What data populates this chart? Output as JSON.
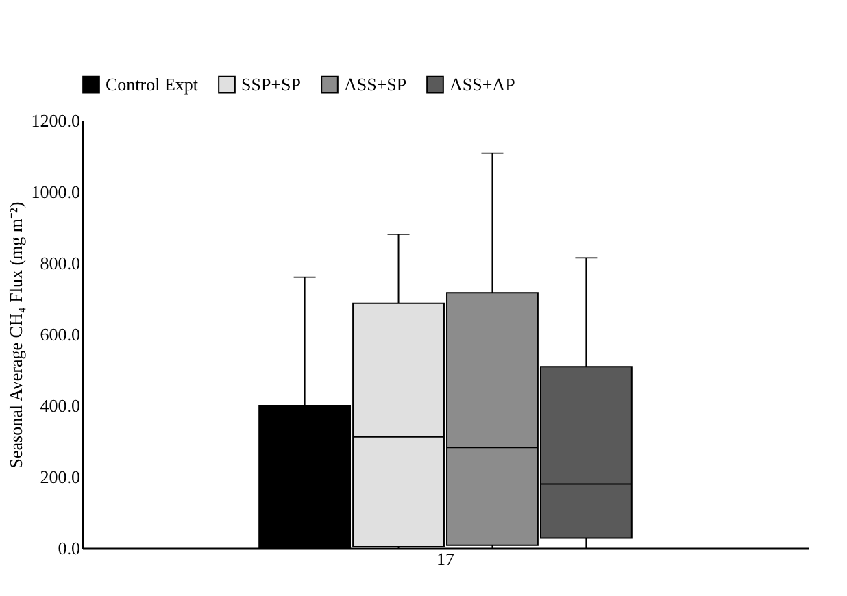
{
  "chart_data": {
    "type": "box",
    "ylabel": "Seasonal Average CH₄ Flux (mg m⁻²)",
    "categories": [
      "17"
    ],
    "series": [
      {
        "name": "Control Expt",
        "type": "bar",
        "color": "#000000",
        "values": [
          400
        ],
        "errors": [
          [
            400,
            760
          ]
        ]
      },
      {
        "name": "SSP+SP",
        "color": "#e0e0e0",
        "boxes": [
          {
            "low": 0,
            "q1": 4,
            "median": 312,
            "q3": 687,
            "high": 881
          }
        ]
      },
      {
        "name": "ASS+SP",
        "color": "#8c8c8c",
        "boxes": [
          {
            "low": 0,
            "q1": 8,
            "median": 282,
            "q3": 717,
            "high": 1108
          }
        ]
      },
      {
        "name": "ASS+AP",
        "color": "#5a5a5a",
        "boxes": [
          {
            "low": 0,
            "q1": 28,
            "median": 180,
            "q3": 509,
            "high": 815
          }
        ]
      }
    ],
    "ylim": [
      0,
      1200
    ],
    "yticks": [
      {
        "value": 0,
        "label": "0.0"
      },
      {
        "value": 200,
        "label": "200.0"
      },
      {
        "value": 400,
        "label": "400.0"
      },
      {
        "value": 600,
        "label": "600.0"
      },
      {
        "value": 800,
        "label": "800.0"
      },
      {
        "value": 1000,
        "label": "1000.0"
      },
      {
        "value": 1200,
        "label": "1200.0"
      }
    ],
    "grid": false,
    "legend": "top"
  }
}
